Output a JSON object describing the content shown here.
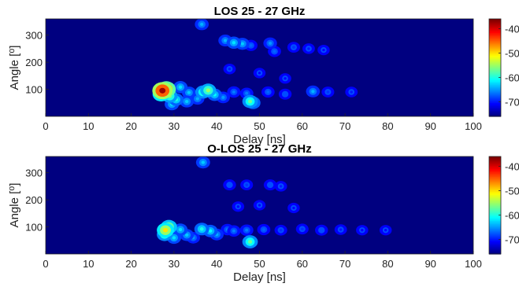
{
  "colormap": "jet",
  "background_color": "#0a0a8c",
  "chart_data": [
    {
      "type": "heatmap",
      "title": "LOS 25 - 27 GHz",
      "xlabel": "Delay [ns]",
      "ylabel": "Angle [⁰]",
      "xlim": [
        0,
        100
      ],
      "ylim": [
        0,
        360
      ],
      "xticks": [
        0,
        10,
        20,
        30,
        40,
        50,
        60,
        70,
        80,
        90,
        100
      ],
      "yticks": [
        100,
        200,
        300
      ],
      "clim": [
        -76,
        -36
      ],
      "colorbar_ticks": [
        -40,
        -50,
        -60,
        -70
      ],
      "background_level": -76,
      "peaks": [
        {
          "delay": 27.3,
          "angle": 95,
          "value": -37
        },
        {
          "delay": 28.2,
          "angle": 100,
          "value": -42
        },
        {
          "delay": 27.0,
          "angle": 82,
          "value": -50
        },
        {
          "delay": 29.0,
          "angle": 75,
          "value": -56
        },
        {
          "delay": 30.5,
          "angle": 62,
          "value": -60
        },
        {
          "delay": 29.5,
          "angle": 45,
          "value": -62
        },
        {
          "delay": 31.5,
          "angle": 108,
          "value": -62
        },
        {
          "delay": 33.5,
          "angle": 88,
          "value": -63
        },
        {
          "delay": 33.0,
          "angle": 55,
          "value": -63
        },
        {
          "delay": 35.5,
          "angle": 65,
          "value": -64
        },
        {
          "delay": 36.8,
          "angle": 90,
          "value": -57
        },
        {
          "delay": 38.0,
          "angle": 96,
          "value": -55
        },
        {
          "delay": 39.5,
          "angle": 80,
          "value": -61
        },
        {
          "delay": 41.5,
          "angle": 70,
          "value": -65
        },
        {
          "delay": 44.0,
          "angle": 90,
          "value": -66
        },
        {
          "delay": 47.8,
          "angle": 55,
          "value": -57
        },
        {
          "delay": 48.5,
          "angle": 50,
          "value": -60
        },
        {
          "delay": 47.0,
          "angle": 85,
          "value": -66
        },
        {
          "delay": 52.0,
          "angle": 90,
          "value": -67
        },
        {
          "delay": 56.0,
          "angle": 82,
          "value": -68
        },
        {
          "delay": 62.5,
          "angle": 92,
          "value": -64
        },
        {
          "delay": 66.0,
          "angle": 90,
          "value": -69
        },
        {
          "delay": 71.5,
          "angle": 90,
          "value": -70
        },
        {
          "delay": 36.5,
          "angle": 340,
          "value": -64
        },
        {
          "delay": 42.0,
          "angle": 280,
          "value": -64
        },
        {
          "delay": 44.0,
          "angle": 272,
          "value": -62
        },
        {
          "delay": 46.0,
          "angle": 268,
          "value": -63
        },
        {
          "delay": 48.0,
          "angle": 262,
          "value": -67
        },
        {
          "delay": 52.5,
          "angle": 270,
          "value": -65
        },
        {
          "delay": 53.5,
          "angle": 240,
          "value": -67
        },
        {
          "delay": 58.0,
          "angle": 255,
          "value": -69
        },
        {
          "delay": 61.5,
          "angle": 250,
          "value": -70
        },
        {
          "delay": 65.0,
          "angle": 245,
          "value": -71
        },
        {
          "delay": 43.0,
          "angle": 175,
          "value": -70
        },
        {
          "delay": 50.0,
          "angle": 160,
          "value": -71
        },
        {
          "delay": 56.0,
          "angle": 140,
          "value": -71
        }
      ]
    },
    {
      "type": "heatmap",
      "title": "O-LOS 25 - 27 GHz",
      "xlabel": "Delay [ns]",
      "ylabel": "Angle [⁰]",
      "xlim": [
        0,
        100
      ],
      "ylim": [
        0,
        360
      ],
      "xticks": [
        0,
        10,
        20,
        30,
        40,
        50,
        60,
        70,
        80,
        90,
        100
      ],
      "yticks": [
        100,
        200,
        300
      ],
      "clim": [
        -76,
        -36
      ],
      "colorbar_ticks": [
        -40,
        -50,
        -60,
        -70
      ],
      "background_level": -76,
      "peaks": [
        {
          "delay": 28.0,
          "angle": 88,
          "value": -50
        },
        {
          "delay": 28.8,
          "angle": 100,
          "value": -53
        },
        {
          "delay": 27.8,
          "angle": 72,
          "value": -57
        },
        {
          "delay": 30.0,
          "angle": 60,
          "value": -62
        },
        {
          "delay": 31.5,
          "angle": 90,
          "value": -62
        },
        {
          "delay": 33.0,
          "angle": 70,
          "value": -63
        },
        {
          "delay": 34.5,
          "angle": 60,
          "value": -65
        },
        {
          "delay": 36.5,
          "angle": 92,
          "value": -60
        },
        {
          "delay": 38.5,
          "angle": 85,
          "value": -61
        },
        {
          "delay": 40.0,
          "angle": 72,
          "value": -64
        },
        {
          "delay": 42.5,
          "angle": 90,
          "value": -66
        },
        {
          "delay": 44.0,
          "angle": 85,
          "value": -66
        },
        {
          "delay": 47.8,
          "angle": 45,
          "value": -57
        },
        {
          "delay": 47.0,
          "angle": 88,
          "value": -66
        },
        {
          "delay": 51.0,
          "angle": 90,
          "value": -67
        },
        {
          "delay": 55.0,
          "angle": 88,
          "value": -69
        },
        {
          "delay": 60.0,
          "angle": 92,
          "value": -69
        },
        {
          "delay": 64.5,
          "angle": 88,
          "value": -68
        },
        {
          "delay": 69.0,
          "angle": 90,
          "value": -70
        },
        {
          "delay": 74.0,
          "angle": 88,
          "value": -71
        },
        {
          "delay": 79.5,
          "angle": 88,
          "value": -71
        },
        {
          "delay": 36.8,
          "angle": 338,
          "value": -63
        },
        {
          "delay": 43.0,
          "angle": 255,
          "value": -68
        },
        {
          "delay": 47.0,
          "angle": 255,
          "value": -69
        },
        {
          "delay": 52.5,
          "angle": 255,
          "value": -68
        },
        {
          "delay": 55.0,
          "angle": 250,
          "value": -70
        },
        {
          "delay": 45.0,
          "angle": 175,
          "value": -71
        },
        {
          "delay": 50.0,
          "angle": 180,
          "value": -71
        },
        {
          "delay": 58.0,
          "angle": 170,
          "value": -71
        }
      ]
    }
  ]
}
